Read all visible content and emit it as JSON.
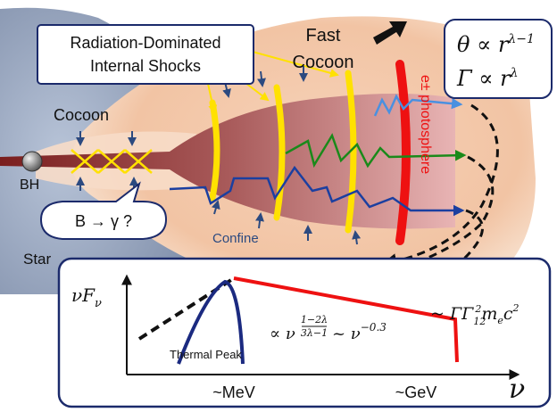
{
  "labels": {
    "title_box_line1": "Radiation-Dominated",
    "title_box_line2": "Internal Shocks",
    "fast_line1": "Fast",
    "fast_line2": "Cocoon",
    "cocoon": "Cocoon",
    "bh": "BH",
    "star": "Star",
    "confine": "Confine",
    "bubble": "B → γ ?",
    "photosphere": "e± photosphere"
  },
  "formulas": {
    "theta_lhs": "θ ∝ r",
    "theta_exp": "λ−1",
    "gamma_lhs": "Γ ∝ r",
    "gamma_exp": "λ"
  },
  "spectrum": {
    "ylabel_main": "νF",
    "ylabel_sub": "ν",
    "xlabel": "ν",
    "thermal_peak": "Thermal Peak",
    "tick_mev": "~MeV",
    "tick_gev": "~GeV",
    "slope_prefix": "∝ ν",
    "slope_exp_num": "1−2λ",
    "slope_exp_den": "3λ−1",
    "slope_approx": "~ ν",
    "slope_approx_exp": "−0.3",
    "cutoff_prefix": "~ ΓΓ",
    "cutoff_sub": "12",
    "cutoff_sup": "2",
    "cutoff_me": "m",
    "cutoff_me_sub": "e",
    "cutoff_c": "c",
    "cutoff_c_sup": "2"
  },
  "colors": {
    "shock": "#ffe100",
    "photosphere": "#ee1111",
    "path_blue": "#1b3fa0",
    "path_green": "#1a8a1a",
    "path_light": "#4a90e0",
    "jet": "#8a2a2a",
    "frame": "#1b2a6b"
  }
}
